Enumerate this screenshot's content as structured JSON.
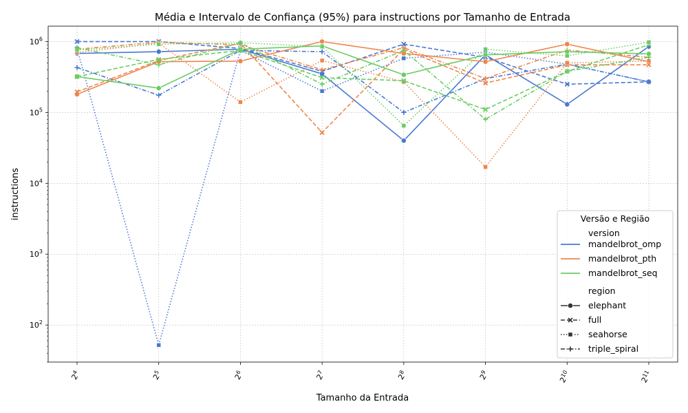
{
  "chart_data": {
    "type": "line",
    "title": "Média e Intervalo de Confiança (95%) para instructions por Tamanho de Entrada",
    "xlabel": "Tamanho da Entrada",
    "ylabel": "instructions",
    "x_scale": "log2",
    "y_scale": "log10",
    "categories": [
      "2^4",
      "2^5",
      "2^6",
      "2^7",
      "2^8",
      "2^9",
      "2^10",
      "2^11"
    ],
    "x": [
      16,
      32,
      64,
      128,
      256,
      512,
      1024,
      2048
    ],
    "y_ticks": [
      {
        "value": 100,
        "label": "10",
        "exp": "2"
      },
      {
        "value": 1000,
        "label": "10",
        "exp": "3"
      },
      {
        "value": 10000,
        "label": "10",
        "exp": "4"
      },
      {
        "value": 100000,
        "label": "10",
        "exp": "5"
      },
      {
        "value": 1000000,
        "label": "10",
        "exp": "6"
      }
    ],
    "ylim": [
      30,
      1650000
    ],
    "grid": true,
    "legend": {
      "placement": "lower-right",
      "title": "Versão e Região",
      "version_header": "version",
      "region_header": "region",
      "versions": [
        {
          "name": "mandelbrot_omp",
          "color": "#4878d0"
        },
        {
          "name": "mandelbrot_pth",
          "color": "#ee854a"
        },
        {
          "name": "mandelbrot_seq",
          "color": "#6acc64"
        }
      ],
      "regions": [
        {
          "name": "elephant",
          "dash": "solid",
          "marker": "circle"
        },
        {
          "name": "full",
          "dash": "dashed",
          "marker": "x"
        },
        {
          "name": "seahorse",
          "dash": "dotted",
          "marker": "square"
        },
        {
          "name": "triple_spiral",
          "dash": "dashdot",
          "marker": "plus"
        }
      ]
    },
    "series": [
      {
        "version": "mandelbrot_omp",
        "region": "elephant",
        "values": [
          680000,
          720000,
          780000,
          350000,
          40000,
          650000,
          130000,
          850000
        ]
      },
      {
        "version": "mandelbrot_omp",
        "region": "full",
        "values": [
          1000000,
          1000000,
          800000,
          380000,
          920000,
          600000,
          250000,
          270000
        ]
      },
      {
        "version": "mandelbrot_omp",
        "region": "seahorse",
        "values": [
          800000,
          52,
          750000,
          200000,
          580000,
          710000,
          480000,
          270000
        ]
      },
      {
        "version": "mandelbrot_omp",
        "region": "triple_spiral",
        "values": [
          430000,
          175000,
          750000,
          720000,
          100000,
          300000,
          480000,
          270000
        ]
      },
      {
        "version": "mandelbrot_pth",
        "region": "elephant",
        "values": [
          180000,
          520000,
          530000,
          1000000,
          680000,
          520000,
          920000,
          520000
        ]
      },
      {
        "version": "mandelbrot_pth",
        "region": "full",
        "values": [
          195000,
          540000,
          950000,
          52000,
          780000,
          260000,
          470000,
          470000
        ]
      },
      {
        "version": "mandelbrot_pth",
        "region": "seahorse",
        "values": [
          700000,
          950000,
          140000,
          540000,
          270000,
          17000,
          500000,
          530000
        ]
      },
      {
        "version": "mandelbrot_pth",
        "region": "triple_spiral",
        "values": [
          780000,
          980000,
          900000,
          400000,
          820000,
          300000,
          760000,
          600000
        ]
      },
      {
        "version": "mandelbrot_seq",
        "region": "elephant",
        "values": [
          320000,
          220000,
          780000,
          870000,
          340000,
          650000,
          720000,
          670000
        ]
      },
      {
        "version": "mandelbrot_seq",
        "region": "full",
        "values": [
          320000,
          560000,
          750000,
          310000,
          280000,
          110000,
          380000,
          900000
        ]
      },
      {
        "version": "mandelbrot_seq",
        "region": "seahorse",
        "values": [
          760000,
          920000,
          960000,
          850000,
          65000,
          780000,
          630000,
          980000
        ]
      },
      {
        "version": "mandelbrot_seq",
        "region": "triple_spiral",
        "values": [
          820000,
          470000,
          960000,
          250000,
          750000,
          80000,
          380000,
          600000
        ]
      }
    ]
  }
}
